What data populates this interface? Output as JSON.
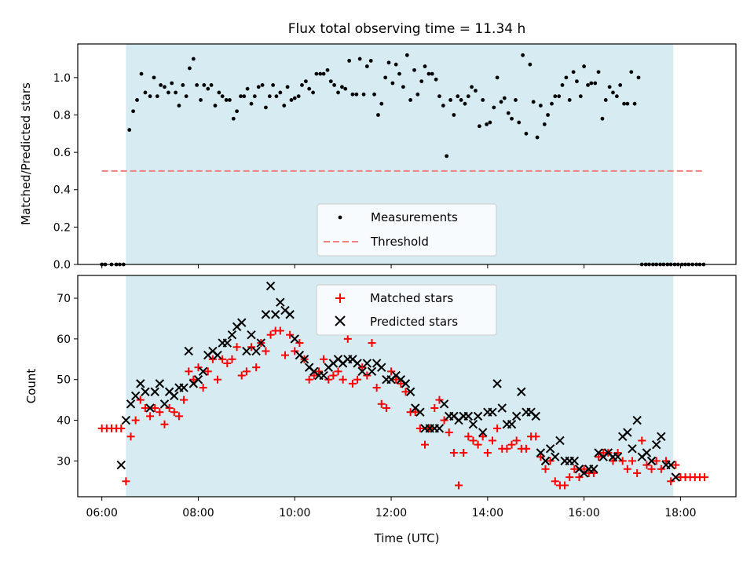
{
  "chart_data": [
    {
      "type": "scatter",
      "title": "Flux total observing time = 11.34 h",
      "xlabel": "",
      "ylabel": "Matched/Predicted stars",
      "xlim": [
        5.5,
        19.15
      ],
      "ylim": [
        0,
        1.18
      ],
      "yticks": [
        "0.0",
        "0.2",
        "0.4",
        "0.6",
        "0.8",
        "1.0"
      ],
      "shaded_region": [
        6.5,
        17.85
      ],
      "shade_color": "#add8e6",
      "legend": {
        "placement": "lower-center",
        "entries": [
          "Measurements",
          "Threshold"
        ]
      },
      "threshold": {
        "name": "Threshold",
        "y": 0.5,
        "x_range": [
          6.0,
          18.5
        ],
        "color": "#f08080"
      },
      "series": [
        {
          "name": "Measurements",
          "color": "#000000",
          "x": [
            6.0,
            6.07,
            6.2,
            6.3,
            6.37,
            6.45,
            6.57,
            6.65,
            6.73,
            6.82,
            6.9,
            7.0,
            7.08,
            7.15,
            7.22,
            7.3,
            7.38,
            7.45,
            7.53,
            7.6,
            7.68,
            7.75,
            7.82,
            7.9,
            7.97,
            8.05,
            8.12,
            8.2,
            8.27,
            8.35,
            8.43,
            8.5,
            8.58,
            8.65,
            8.73,
            8.8,
            8.88,
            8.95,
            9.02,
            9.1,
            9.17,
            9.25,
            9.33,
            9.4,
            9.48,
            9.55,
            9.62,
            9.7,
            9.78,
            9.85,
            9.93,
            10.0,
            10.08,
            10.15,
            10.23,
            10.3,
            10.38,
            10.45,
            10.53,
            10.6,
            10.68,
            10.75,
            10.82,
            10.9,
            10.98,
            11.05,
            11.13,
            11.2,
            11.28,
            11.35,
            11.43,
            11.5,
            11.58,
            11.65,
            11.73,
            11.8,
            11.88,
            11.95,
            12.03,
            12.1,
            12.17,
            12.25,
            12.33,
            12.4,
            12.48,
            12.55,
            12.63,
            12.7,
            12.78,
            12.85,
            12.93,
            13.0,
            13.08,
            13.15,
            13.23,
            13.3,
            13.38,
            13.45,
            13.53,
            13.6,
            13.67,
            13.75,
            13.83,
            13.9,
            13.98,
            14.05,
            14.13,
            14.2,
            14.28,
            14.35,
            14.43,
            14.5,
            14.58,
            14.65,
            14.73,
            14.8,
            14.88,
            14.95,
            15.03,
            15.1,
            15.18,
            15.25,
            15.33,
            15.4,
            15.48,
            15.55,
            15.63,
            15.7,
            15.78,
            15.85,
            15.93,
            16.0,
            16.08,
            16.15,
            16.23,
            16.3,
            16.38,
            16.45,
            16.53,
            16.6,
            16.68,
            16.75,
            16.83,
            16.9,
            16.98,
            17.05,
            17.13,
            17.2,
            17.28,
            17.35,
            17.43,
            17.5,
            17.58,
            17.65,
            17.73,
            17.8,
            17.88,
            17.95,
            18.03,
            18.1,
            18.17,
            18.25,
            18.33,
            18.4,
            18.48
          ],
          "y": [
            0.0,
            0.0,
            0.0,
            0.0,
            0.0,
            0.0,
            0.72,
            0.82,
            0.88,
            1.02,
            0.92,
            0.9,
            1.0,
            0.9,
            0.96,
            0.95,
            0.92,
            0.97,
            0.92,
            0.85,
            0.96,
            0.9,
            1.05,
            1.1,
            0.96,
            0.88,
            0.96,
            0.94,
            0.96,
            0.85,
            0.92,
            0.9,
            0.88,
            0.88,
            0.78,
            0.82,
            0.9,
            0.9,
            0.94,
            0.86,
            0.9,
            0.95,
            0.96,
            0.84,
            0.9,
            0.96,
            0.9,
            0.92,
            0.85,
            0.95,
            0.88,
            0.89,
            0.9,
            0.96,
            0.98,
            0.94,
            0.92,
            1.02,
            1.02,
            1.02,
            1.04,
            0.98,
            0.96,
            0.92,
            0.95,
            0.94,
            1.09,
            0.91,
            0.91,
            1.1,
            0.91,
            1.06,
            1.09,
            0.91,
            0.8,
            0.86,
            1.0,
            1.08,
            0.97,
            1.07,
            1.02,
            0.95,
            1.12,
            0.88,
            1.04,
            0.91,
            0.98,
            1.06,
            1.02,
            1.02,
            0.99,
            0.9,
            0.85,
            0.58,
            0.88,
            0.8,
            0.9,
            0.88,
            0.86,
            0.9,
            0.95,
            0.93,
            0.74,
            0.88,
            0.75,
            0.76,
            0.84,
            1.0,
            0.87,
            0.89,
            0.81,
            0.78,
            0.88,
            0.76,
            1.12,
            0.7,
            1.07,
            0.87,
            0.68,
            0.85,
            0.75,
            0.8,
            0.86,
            0.9,
            0.9,
            0.96,
            1.0,
            0.88,
            1.03,
            0.98,
            0.9,
            1.06,
            0.96,
            0.97,
            0.97,
            1.03,
            0.78,
            0.88,
            0.95,
            0.92,
            0.9,
            0.96,
            0.86,
            0.86,
            1.03,
            0.86,
            1.0,
            0.0,
            0.0,
            0.0,
            0.0,
            0.0,
            0.0,
            0.0,
            0.0,
            0.0,
            0.0,
            0.0,
            0.0,
            0.0,
            0.0,
            0.0,
            0.0,
            0.0,
            0.0
          ]
        }
      ]
    },
    {
      "type": "scatter",
      "title": "",
      "xlabel": "Time (UTC)",
      "ylabel": "Count",
      "xlim": [
        5.5,
        19.15
      ],
      "ylim": [
        21.2,
        75.6
      ],
      "yticks": [
        "30",
        "40",
        "50",
        "60",
        "70"
      ],
      "xticks": [
        "06:00",
        "08:00",
        "10:00",
        "12:00",
        "14:00",
        "16:00",
        "18:00"
      ],
      "shaded_region": [
        6.5,
        17.85
      ],
      "shade_color": "#add8e6",
      "legend": {
        "placement": "upper-center",
        "entries": [
          "Matched stars",
          "Predicted stars"
        ]
      },
      "series": [
        {
          "name": "Matched stars",
          "marker": "plus",
          "color": "#ff0000",
          "x": [
            6.0,
            6.1,
            6.2,
            6.3,
            6.4,
            6.5,
            6.6,
            6.7,
            6.8,
            6.9,
            7.0,
            7.1,
            7.2,
            7.3,
            7.4,
            7.5,
            7.6,
            7.7,
            7.8,
            7.9,
            8.0,
            8.1,
            8.2,
            8.3,
            8.4,
            8.5,
            8.6,
            8.7,
            8.8,
            8.9,
            9.0,
            9.1,
            9.2,
            9.3,
            9.4,
            9.5,
            9.6,
            9.7,
            9.8,
            9.9,
            10.0,
            10.1,
            10.2,
            10.3,
            10.4,
            10.5,
            10.6,
            10.7,
            10.8,
            10.9,
            11.0,
            11.1,
            11.2,
            11.3,
            11.4,
            11.5,
            11.6,
            11.7,
            11.8,
            11.9,
            12.0,
            12.1,
            12.2,
            12.3,
            12.4,
            12.5,
            12.6,
            12.7,
            12.8,
            12.9,
            13.0,
            13.1,
            13.2,
            13.3,
            13.4,
            13.5,
            13.6,
            13.7,
            13.8,
            13.9,
            14.0,
            14.1,
            14.2,
            14.3,
            14.4,
            14.5,
            14.6,
            14.7,
            14.8,
            14.9,
            15.0,
            15.1,
            15.2,
            15.3,
            15.4,
            15.5,
            15.6,
            15.7,
            15.8,
            15.9,
            16.0,
            16.1,
            16.2,
            16.3,
            16.4,
            16.5,
            16.6,
            16.7,
            16.8,
            16.9,
            17.0,
            17.1,
            17.2,
            17.3,
            17.4,
            17.5,
            17.6,
            17.7,
            17.8,
            17.9,
            18.0,
            18.1,
            18.2,
            18.3,
            18.4,
            18.5
          ],
          "y": [
            38,
            38,
            38,
            38,
            38,
            25,
            36,
            40,
            45,
            43,
            41,
            43,
            42,
            39,
            43,
            42,
            41,
            45,
            52,
            50,
            53,
            48,
            52,
            55,
            50,
            55,
            54,
            55,
            58,
            51,
            52,
            58,
            53,
            59,
            57,
            61,
            62,
            62,
            56,
            61,
            57,
            59,
            55,
            50,
            51,
            52,
            55,
            50,
            51,
            52,
            50,
            60,
            49,
            50,
            53,
            51,
            59,
            48,
            44,
            43,
            52,
            50,
            49,
            47,
            42,
            42,
            38,
            34,
            38,
            43,
            45,
            40,
            37,
            32,
            24,
            32,
            36,
            35,
            34,
            36,
            32,
            35,
            38,
            33,
            33,
            34,
            35,
            33,
            33,
            36,
            36,
            31,
            28,
            30,
            25,
            24,
            24,
            26,
            28,
            26,
            28,
            27,
            27,
            31,
            32,
            32,
            30,
            32,
            30,
            28,
            30,
            27,
            35,
            29,
            28,
            30,
            28,
            30,
            25,
            29,
            26,
            26,
            26,
            26,
            26,
            26
          ]
        },
        {
          "name": "Predicted stars",
          "marker": "x",
          "color": "#000000",
          "x": [
            6.4,
            6.5,
            6.6,
            6.7,
            6.8,
            6.9,
            7.0,
            7.1,
            7.2,
            7.3,
            7.4,
            7.5,
            7.6,
            7.7,
            7.8,
            7.9,
            8.0,
            8.1,
            8.2,
            8.3,
            8.4,
            8.5,
            8.6,
            8.7,
            8.8,
            8.9,
            9.0,
            9.1,
            9.2,
            9.3,
            9.4,
            9.5,
            9.6,
            9.7,
            9.8,
            9.9,
            10.0,
            10.1,
            10.2,
            10.3,
            10.4,
            10.5,
            10.6,
            10.7,
            10.8,
            10.9,
            11.0,
            11.1,
            11.2,
            11.3,
            11.4,
            11.5,
            11.6,
            11.7,
            11.8,
            11.9,
            12.0,
            12.1,
            12.2,
            12.3,
            12.4,
            12.5,
            12.6,
            12.7,
            12.8,
            12.9,
            13.0,
            13.1,
            13.2,
            13.3,
            13.4,
            13.5,
            13.6,
            13.7,
            13.8,
            13.9,
            14.0,
            14.1,
            14.2,
            14.3,
            14.4,
            14.5,
            14.6,
            14.7,
            14.8,
            14.9,
            15.0,
            15.1,
            15.2,
            15.3,
            15.4,
            15.5,
            15.6,
            15.7,
            15.8,
            15.9,
            16.0,
            16.1,
            16.2,
            16.3,
            16.4,
            16.5,
            16.6,
            16.7,
            16.8,
            16.9,
            17.0,
            17.1,
            17.2,
            17.3,
            17.4,
            17.5,
            17.6,
            17.7,
            17.8,
            17.9
          ],
          "y": [
            29,
            40,
            44,
            46,
            49,
            47,
            43,
            47,
            49,
            44,
            47,
            46,
            48,
            48,
            57,
            49,
            50,
            52,
            56,
            57,
            56,
            59,
            59,
            61,
            63,
            64,
            57,
            61,
            57,
            59,
            66,
            73,
            66,
            69,
            67,
            66,
            60,
            56,
            55,
            53,
            52,
            51,
            51,
            53,
            54,
            55,
            54,
            55,
            55,
            54,
            52,
            54,
            52,
            54,
            53,
            50,
            50,
            51,
            50,
            49,
            47,
            43,
            42,
            38,
            38,
            38,
            38,
            44,
            41,
            41,
            40,
            41,
            41,
            39,
            41,
            37,
            42,
            42,
            49,
            43,
            39,
            39,
            41,
            47,
            42,
            42,
            41,
            32,
            30,
            33,
            31,
            35,
            30,
            30,
            30,
            28,
            27,
            28,
            28,
            32,
            31,
            32,
            31,
            31,
            36,
            37,
            33,
            40,
            31,
            32,
            30,
            34,
            36,
            29,
            29,
            26
          ]
        }
      ]
    }
  ]
}
